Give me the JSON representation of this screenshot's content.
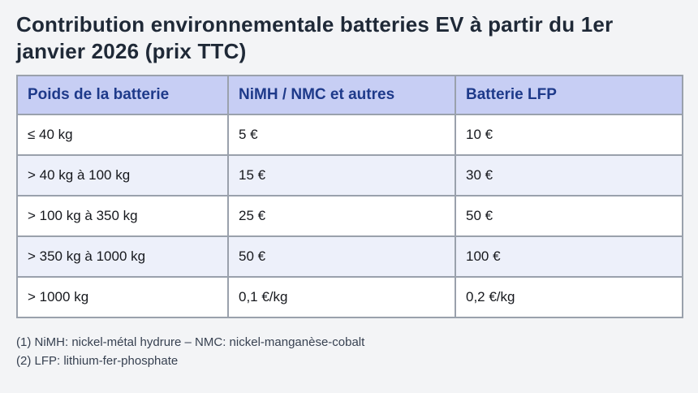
{
  "page": {
    "title": "Contribution environnementale batteries EV à partir du 1er janvier 2026 (prix TTC)"
  },
  "table": {
    "headers": [
      "Poids de la batterie",
      "NiMH / NMC et autres",
      "Batterie LFP"
    ],
    "rows": [
      [
        "≤ 40 kg",
        "5 €",
        "10 €"
      ],
      [
        "> 40 kg à 100 kg",
        "15 €",
        "30 €"
      ],
      [
        "> 100 kg à 350 kg",
        "25 €",
        "50 €"
      ],
      [
        "> 350 kg à 1000 kg",
        "50 €",
        "100 €"
      ],
      [
        "> 1000 kg",
        "0,1 €/kg",
        "0,2 €/kg"
      ]
    ]
  },
  "footnotes": [
    "(1) NiMH: nickel-métal hydrure – NMC: nickel-manganèse-cobalt",
    "(2) LFP: lithium-fer-phosphate"
  ],
  "colors": {
    "page_background": "#f3f4f6",
    "header_background": "#c7cef4",
    "header_text": "#1e3a8a",
    "row_alternate_background": "#edf0fa",
    "table_border": "#9aa1ac",
    "title_text": "#1f2937",
    "cell_text": "#16181d",
    "footnote_text": "#374151"
  }
}
